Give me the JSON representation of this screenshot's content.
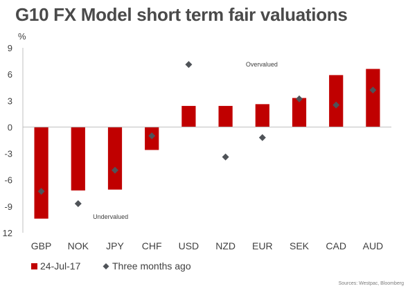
{
  "title": "G10 FX Model short term fair valuations",
  "source": "Sources: Westpac, Bloomberg",
  "colors": {
    "bar": "#c00000",
    "marker": "#4f5358",
    "text": "#404040",
    "axis": "#bfbfbf"
  },
  "chart_data": {
    "type": "bar",
    "ylabel": "%",
    "ylim": [
      -12,
      9
    ],
    "yticks": [
      9,
      6,
      3,
      0,
      -3,
      -6,
      -9,
      12
    ],
    "categories": [
      "GBP",
      "NOK",
      "JPY",
      "CHF",
      "USD",
      "NZD",
      "EUR",
      "SEK",
      "CAD",
      "AUD"
    ],
    "series": [
      {
        "name": "24-Jul-17",
        "kind": "bar",
        "values": [
          -10.4,
          -7.2,
          -7.1,
          -2.6,
          2.4,
          2.4,
          2.6,
          3.3,
          5.9,
          6.6
        ]
      },
      {
        "name": "Three months ago",
        "kind": "marker",
        "values": [
          -7.3,
          -8.7,
          -4.9,
          -1.0,
          7.1,
          -3.4,
          -1.2,
          3.2,
          2.5,
          4.2
        ]
      }
    ],
    "annotations": [
      {
        "text": "Overvalued",
        "category": "NZD",
        "offset": 0.55,
        "y": 7.1
      },
      {
        "text": "Undervalued",
        "category": "GBP",
        "offset": 1.4,
        "y": -10.2
      }
    ],
    "legend": "bottom-left"
  }
}
